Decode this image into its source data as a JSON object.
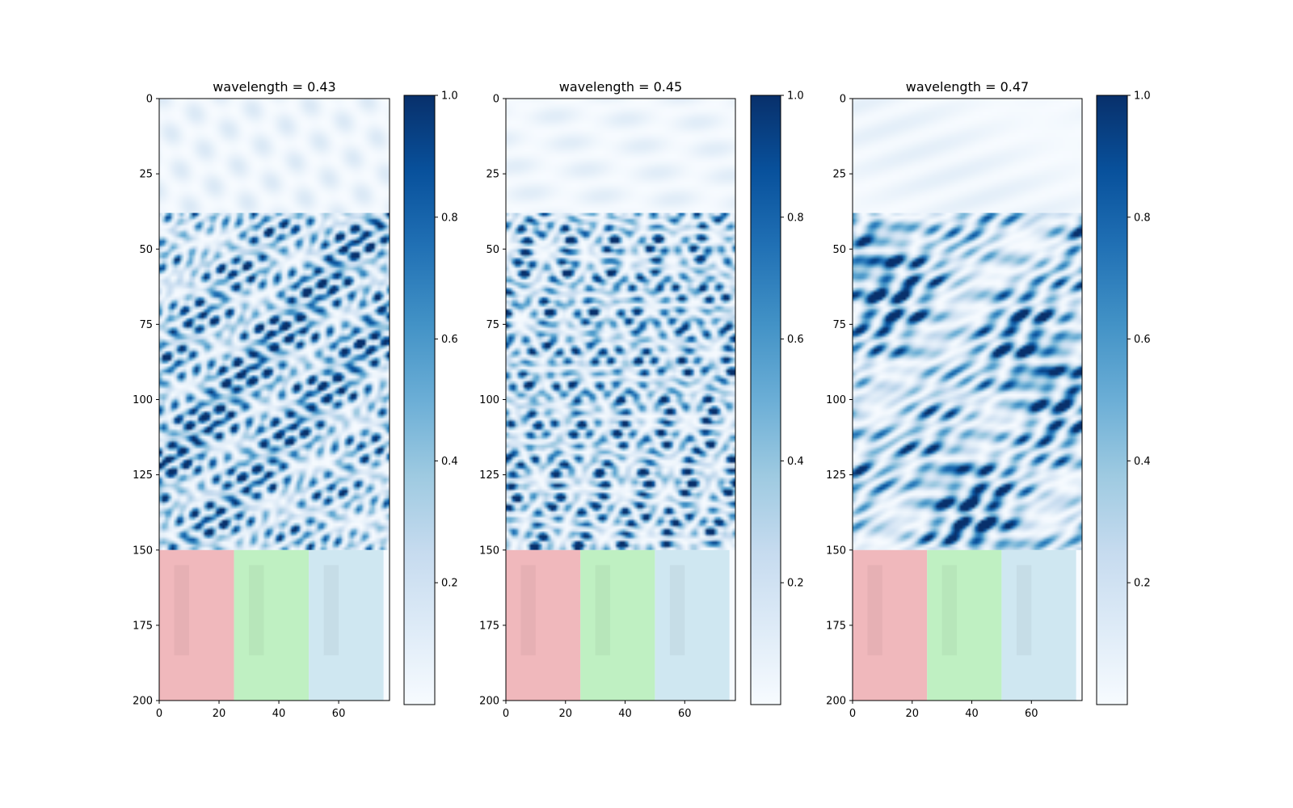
{
  "figure": {
    "colormap": "Blues",
    "colormap_colors": [
      "#f7fbff",
      "#deebf7",
      "#c6dbef",
      "#9ecae1",
      "#6baed6",
      "#4292c6",
      "#2171b5",
      "#08519c",
      "#08306b"
    ]
  },
  "chart_data": [
    {
      "type": "heatmap",
      "title": "wavelength = 0.43",
      "xlim": [
        0,
        77
      ],
      "ylim": [
        200,
        0
      ],
      "x_ticks": [
        "0",
        "20",
        "40",
        "60"
      ],
      "y_ticks": [
        "0",
        "25",
        "50",
        "75",
        "100",
        "125",
        "150",
        "175",
        "200"
      ],
      "colorbar": {
        "range": [
          0,
          1
        ],
        "ticks": [
          "0.2",
          "0.4",
          "0.6",
          "0.8",
          "1.0"
        ]
      },
      "bands": [
        {
          "region": "top",
          "y_range": [
            0,
            38
          ],
          "max_intensity": 0.15
        },
        {
          "region": "middle",
          "y_range": [
            38,
            150
          ],
          "max_intensity": 1.0
        },
        {
          "region": "bottom",
          "y_range": [
            150,
            200
          ]
        }
      ],
      "bottom_regions": [
        {
          "x_range": [
            0,
            25
          ],
          "color": "#f0b8bc"
        },
        {
          "x_range": [
            25,
            50
          ],
          "color": "#bff0c2"
        },
        {
          "x_range": [
            50,
            75
          ],
          "color": "#cfe7f1"
        }
      ],
      "seed": 43
    },
    {
      "type": "heatmap",
      "title": "wavelength = 0.45",
      "xlim": [
        0,
        77
      ],
      "ylim": [
        200,
        0
      ],
      "x_ticks": [
        "0",
        "20",
        "40",
        "60"
      ],
      "y_ticks": [
        "0",
        "25",
        "50",
        "75",
        "100",
        "125",
        "150",
        "175",
        "200"
      ],
      "colorbar": {
        "range": [
          0,
          1
        ],
        "ticks": [
          "0.2",
          "0.4",
          "0.6",
          "0.8",
          "1.0"
        ]
      },
      "bands": [
        {
          "region": "top",
          "y_range": [
            0,
            38
          ],
          "max_intensity": 0.12
        },
        {
          "region": "middle",
          "y_range": [
            38,
            150
          ],
          "max_intensity": 1.0
        },
        {
          "region": "bottom",
          "y_range": [
            150,
            200
          ]
        }
      ],
      "bottom_regions": [
        {
          "x_range": [
            0,
            25
          ],
          "color": "#f0b8bc"
        },
        {
          "x_range": [
            25,
            50
          ],
          "color": "#bff0c2"
        },
        {
          "x_range": [
            50,
            75
          ],
          "color": "#cfe7f1"
        }
      ],
      "seed": 45
    },
    {
      "type": "heatmap",
      "title": "wavelength = 0.47",
      "xlim": [
        0,
        77
      ],
      "ylim": [
        200,
        0
      ],
      "x_ticks": [
        "0",
        "20",
        "40",
        "60"
      ],
      "y_ticks": [
        "0",
        "25",
        "50",
        "75",
        "100",
        "125",
        "150",
        "175",
        "200"
      ],
      "colorbar": {
        "range": [
          0,
          1
        ],
        "ticks": [
          "0.2",
          "0.4",
          "0.6",
          "0.8",
          "1.0"
        ]
      },
      "bands": [
        {
          "region": "top",
          "y_range": [
            0,
            38
          ],
          "max_intensity": 0.1
        },
        {
          "region": "middle",
          "y_range": [
            38,
            150
          ],
          "max_intensity": 1.0
        },
        {
          "region": "bottom",
          "y_range": [
            150,
            200
          ]
        }
      ],
      "bottom_regions": [
        {
          "x_range": [
            0,
            25
          ],
          "color": "#f0b8bc"
        },
        {
          "x_range": [
            25,
            50
          ],
          "color": "#bff0c2"
        },
        {
          "x_range": [
            50,
            75
          ],
          "color": "#cfe7f1"
        }
      ],
      "seed": 47
    }
  ]
}
